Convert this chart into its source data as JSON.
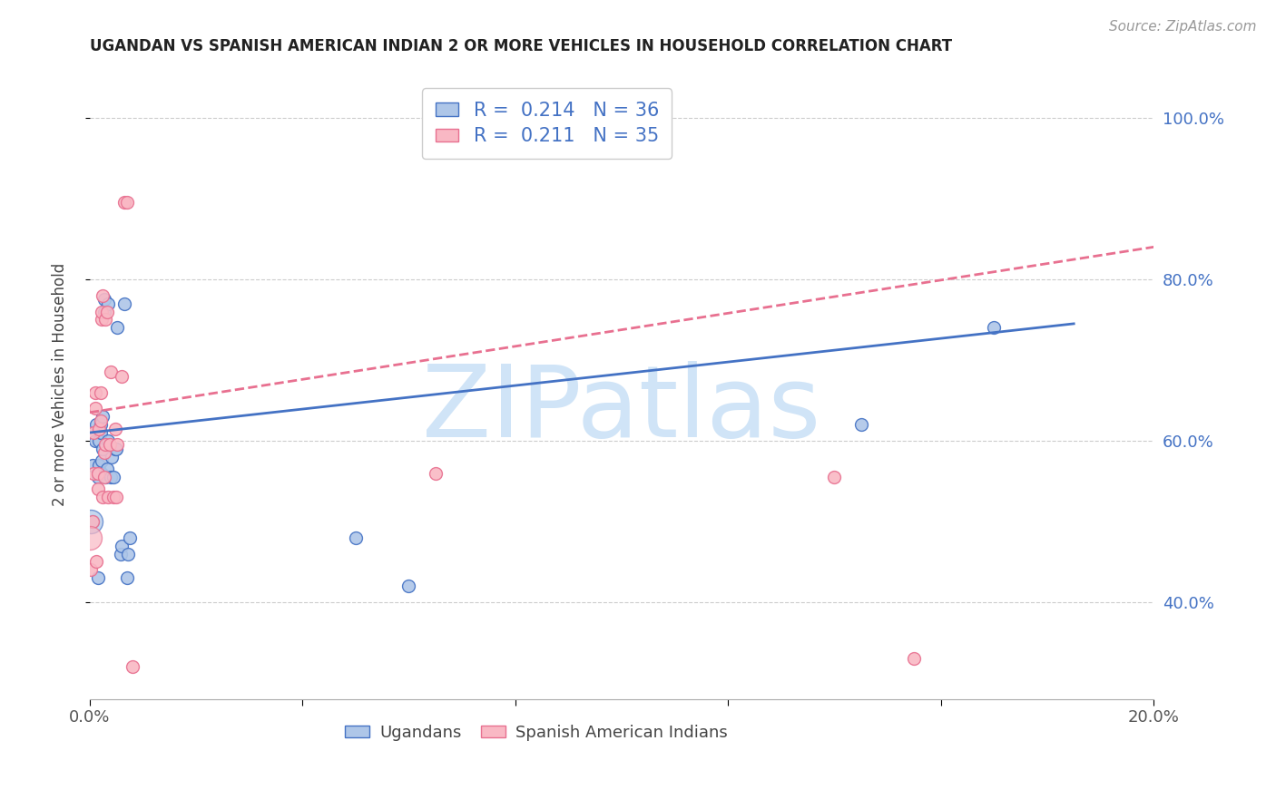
{
  "title": "UGANDAN VS SPANISH AMERICAN INDIAN 2 OR MORE VEHICLES IN HOUSEHOLD CORRELATION CHART",
  "source": "Source: ZipAtlas.com",
  "ylabel": "2 or more Vehicles in Household",
  "xlim": [
    0.0,
    0.2
  ],
  "ylim": [
    0.28,
    1.06
  ],
  "xticks": [
    0.0,
    0.04,
    0.08,
    0.12,
    0.16,
    0.2
  ],
  "xticklabels": [
    "0.0%",
    "",
    "",
    "",
    "",
    "20.0%"
  ],
  "yticks": [
    0.4,
    0.6,
    0.8,
    1.0
  ],
  "yticklabels": [
    "40.0%",
    "60.0%",
    "80.0%",
    "100.0%"
  ],
  "legend1_r": "R = ",
  "legend1_val": "0.214",
  "legend1_n": "  N = ",
  "legend1_nval": "36",
  "legend2_r": "R =  ",
  "legend2_val": "0.211",
  "legend2_n": "  N = ",
  "legend2_nval": "35",
  "blue_fill": "#aec6e8",
  "blue_edge": "#4472c4",
  "pink_fill": "#f9b8c4",
  "pink_edge": "#e87090",
  "blue_line_color": "#4472c4",
  "pink_line_color": "#e87090",
  "text_color_dark": "#222222",
  "text_color_blue": "#4472c4",
  "watermark": "ZIPatlas",
  "watermark_color": "#d0e4f7",
  "blue_dots": [
    [
      0.0005,
      0.5
    ],
    [
      0.0005,
      0.57
    ],
    [
      0.001,
      0.6
    ],
    [
      0.0012,
      0.62
    ],
    [
      0.0015,
      0.43
    ],
    [
      0.0015,
      0.555
    ],
    [
      0.0018,
      0.57
    ],
    [
      0.0018,
      0.6
    ],
    [
      0.002,
      0.61
    ],
    [
      0.002,
      0.62
    ],
    [
      0.0022,
      0.56
    ],
    [
      0.0022,
      0.575
    ],
    [
      0.0025,
      0.59
    ],
    [
      0.0025,
      0.63
    ],
    [
      0.0028,
      0.76
    ],
    [
      0.0028,
      0.775
    ],
    [
      0.003,
      0.555
    ],
    [
      0.0032,
      0.565
    ],
    [
      0.0035,
      0.6
    ],
    [
      0.0035,
      0.77
    ],
    [
      0.004,
      0.555
    ],
    [
      0.0042,
      0.58
    ],
    [
      0.0045,
      0.555
    ],
    [
      0.0048,
      0.59
    ],
    [
      0.005,
      0.59
    ],
    [
      0.0052,
      0.74
    ],
    [
      0.0058,
      0.46
    ],
    [
      0.006,
      0.47
    ],
    [
      0.0065,
      0.77
    ],
    [
      0.007,
      0.43
    ],
    [
      0.0072,
      0.46
    ],
    [
      0.0075,
      0.48
    ],
    [
      0.05,
      0.48
    ],
    [
      0.06,
      0.42
    ],
    [
      0.145,
      0.62
    ],
    [
      0.17,
      0.74
    ]
  ],
  "pink_dots": [
    [
      0.0002,
      0.44
    ],
    [
      0.0005,
      0.5
    ],
    [
      0.0007,
      0.56
    ],
    [
      0.0008,
      0.61
    ],
    [
      0.001,
      0.64
    ],
    [
      0.001,
      0.66
    ],
    [
      0.0012,
      0.45
    ],
    [
      0.0015,
      0.54
    ],
    [
      0.0015,
      0.56
    ],
    [
      0.0018,
      0.615
    ],
    [
      0.002,
      0.625
    ],
    [
      0.002,
      0.66
    ],
    [
      0.0022,
      0.75
    ],
    [
      0.0022,
      0.76
    ],
    [
      0.0025,
      0.78
    ],
    [
      0.0025,
      0.53
    ],
    [
      0.0028,
      0.555
    ],
    [
      0.0028,
      0.585
    ],
    [
      0.003,
      0.595
    ],
    [
      0.003,
      0.75
    ],
    [
      0.0032,
      0.76
    ],
    [
      0.0035,
      0.53
    ],
    [
      0.0038,
      0.595
    ],
    [
      0.004,
      0.685
    ],
    [
      0.0045,
      0.53
    ],
    [
      0.0048,
      0.615
    ],
    [
      0.005,
      0.53
    ],
    [
      0.0052,
      0.595
    ],
    [
      0.006,
      0.68
    ],
    [
      0.0065,
      0.895
    ],
    [
      0.007,
      0.895
    ],
    [
      0.008,
      0.32
    ],
    [
      0.065,
      0.56
    ],
    [
      0.14,
      0.555
    ],
    [
      0.155,
      0.33
    ]
  ],
  "blue_trend_x": [
    0.0,
    0.185
  ],
  "blue_trend_y": [
    0.61,
    0.745
  ],
  "pink_trend_x": [
    0.0,
    0.2
  ],
  "pink_trend_y": [
    0.635,
    0.84
  ],
  "dot_size": 100,
  "dot_size_large": 350
}
